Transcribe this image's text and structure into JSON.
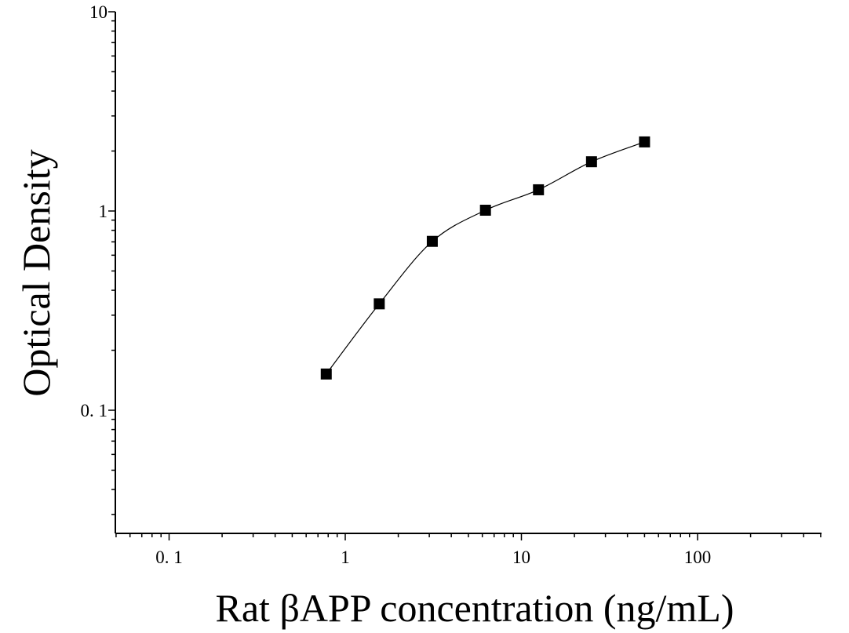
{
  "chart_data": {
    "type": "scatter",
    "title": "",
    "xlabel": "Rat βAPP concentration (ng/mL)",
    "ylabel": "Optical Density",
    "x_scale": "log",
    "y_scale": "log",
    "xlim": [
      0.05,
      1000
    ],
    "ylim": [
      0.025,
      10
    ],
    "x_ticks": [
      {
        "value": 0.1,
        "label": "0. 1"
      },
      {
        "value": 1,
        "label": "1"
      },
      {
        "value": 10,
        "label": "10"
      },
      {
        "value": 100,
        "label": "100"
      }
    ],
    "y_ticks": [
      {
        "value": 0.1,
        "label": "0. 1"
      },
      {
        "value": 1,
        "label": "1"
      },
      {
        "value": 10,
        "label": "10"
      }
    ],
    "grid": false,
    "legend": "none",
    "marker": "square",
    "color": "#000000",
    "series": [
      {
        "x": [
          0.78,
          1.56,
          3.12,
          6.25,
          12.5,
          25,
          50
        ],
        "y": [
          0.152,
          0.342,
          0.704,
          1.009,
          1.278,
          1.767,
          2.222
        ]
      }
    ],
    "fit_curve": true
  }
}
